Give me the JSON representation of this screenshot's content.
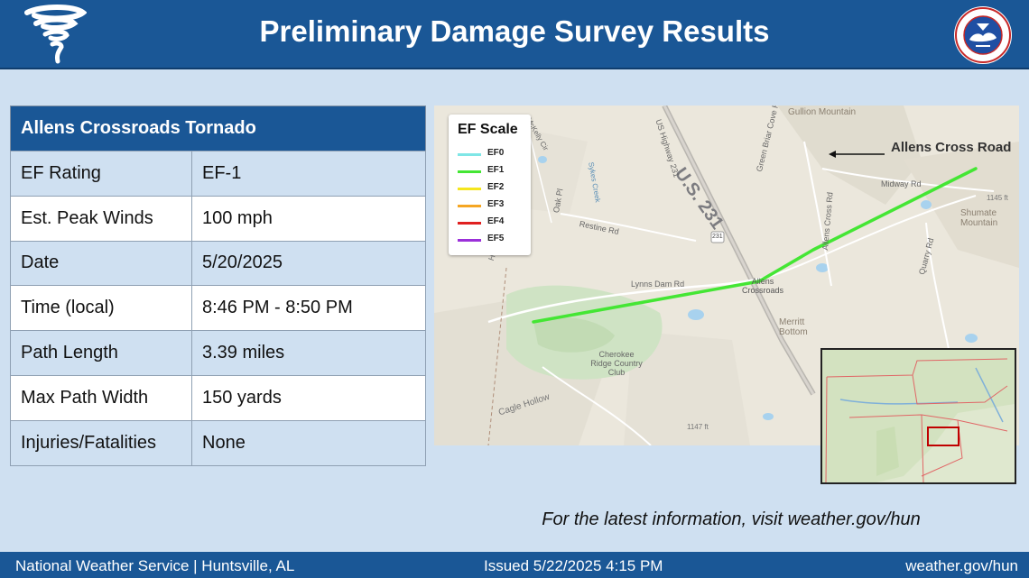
{
  "header": {
    "title": "Preliminary Damage Survey Results",
    "background_color": "#1a5796",
    "left_icon": "tornado-icon",
    "right_icon": "nws-logo"
  },
  "table": {
    "heading": "Allens Crossroads Tornado",
    "rows": [
      {
        "label": "EF Rating",
        "value": "EF-1"
      },
      {
        "label": "Est. Peak Winds",
        "value": "100 mph"
      },
      {
        "label": "Date",
        "value": "5/20/2025"
      },
      {
        "label": "Time (local)",
        "value": "8:46 PM - 8:50 PM"
      },
      {
        "label": "Path Length",
        "value": "3.39 miles"
      },
      {
        "label": "Max Path Width",
        "value": "150 yards"
      },
      {
        "label": "Injuries/Fatalities",
        "value": "None"
      }
    ]
  },
  "map": {
    "legend": {
      "title": "EF Scale",
      "items": [
        {
          "label": "EF0",
          "color": "#7fe6e6"
        },
        {
          "label": "EF1",
          "color": "#44e634"
        },
        {
          "label": "EF2",
          "color": "#f5e61e"
        },
        {
          "label": "EF3",
          "color": "#f5a623"
        },
        {
          "label": "EF4",
          "color": "#e02020"
        },
        {
          "label": "EF5",
          "color": "#9b30d9"
        }
      ]
    },
    "annotation": "Allens Cross Road",
    "labels": {
      "gullion_mountain": "Gullion Mountain",
      "us231": "U.S. 231",
      "us_highway": "US Highway 231",
      "green_briar": "Green Briar Cove Rd",
      "midway": "Midway Rd",
      "shumate": "Shumate Mountain",
      "allens_crossroads": "Allens Crossroads",
      "lynns_dam": "Lynns Dam Rd",
      "merritt_bottom": "Merritt Bottom",
      "cherokee": "Cherokee Ridge Country Club",
      "cagle_hollow": "Cagle Hollow",
      "hollow": "Hollow",
      "restine": "Restine Rd",
      "oak_pl": "Oak Pl",
      "sykes_creek": "Sykes Creek",
      "allens_cross_rd": "Allens Cross Rd",
      "quarry": "Quarry Rd",
      "elev1": "1145 ft",
      "elev2": "1147 ft",
      "route": "231",
      "mckelly": "McKelly Cir"
    },
    "track_color": "#44e634"
  },
  "footer_note": "For the latest information, visit weather.gov/hun",
  "footer": {
    "left": "National Weather Service | Huntsville, AL",
    "middle": "Issued 5/22/2025 4:15 PM",
    "right": "weather.gov/hun"
  }
}
